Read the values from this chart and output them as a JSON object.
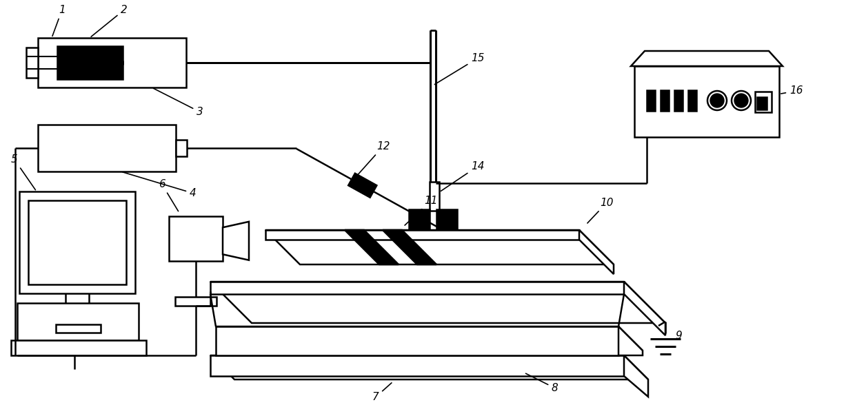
{
  "bg_color": "#ffffff",
  "figsize": [
    12.4,
    6.04
  ],
  "dpi": 100,
  "lw": 1.8
}
